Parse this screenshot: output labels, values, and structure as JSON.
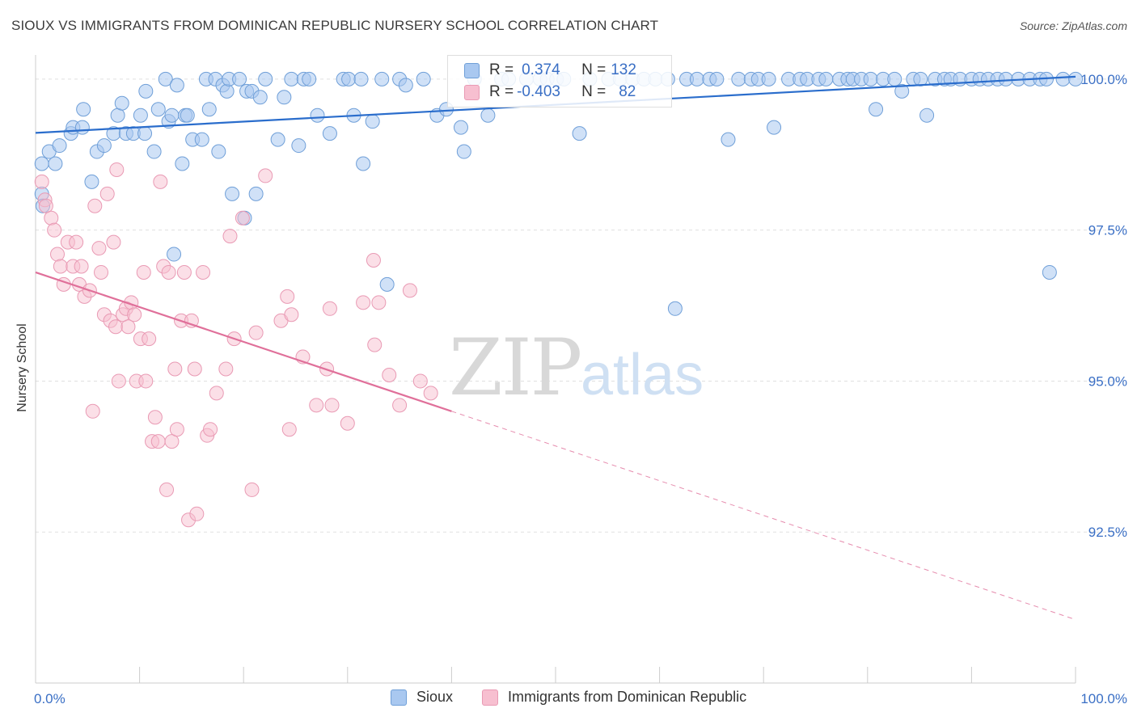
{
  "title": "SIOUX VS IMMIGRANTS FROM DOMINICAN REPUBLIC NURSERY SCHOOL CORRELATION CHART",
  "source": "Source: ZipAtlas.com",
  "watermark": {
    "zip": "ZIP",
    "atlas": "atlas"
  },
  "colors": {
    "blue_fill": "#a9c8f0",
    "blue_stroke": "#6f9fd8",
    "blue_line": "#2a6dcc",
    "pink_fill": "#f7bfd0",
    "pink_stroke": "#e99ab4",
    "pink_line": "#e0709a",
    "tick_label": "#3a6fc5",
    "grid": "#e0e0e0"
  },
  "legend": {
    "rows": [
      {
        "r_label": "R = ",
        "r_value": "0.374",
        "n_label": "N = ",
        "n_value": "132"
      },
      {
        "r_label": "R = ",
        "r_value": "-0.403",
        "n_label": "N = ",
        "n_value": "82"
      }
    ]
  },
  "chart_data": {
    "type": "scatter",
    "title": "SIOUX VS IMMIGRANTS FROM DOMINICAN REPUBLIC NURSERY SCHOOL CORRELATION CHART",
    "xlabel": "",
    "ylabel": "Nursery School",
    "xlim": [
      0,
      100
    ],
    "ylim": [
      90.0,
      100.4
    ],
    "x_tick_labels": [
      "0.0%",
      "100.0%"
    ],
    "y_ticks": [
      100.0,
      97.5,
      95.0,
      92.5
    ],
    "y_tick_labels": [
      "100.0%",
      "97.5%",
      "95.0%",
      "92.5%"
    ],
    "grid": true,
    "legend_position": "top-center",
    "series": [
      {
        "name": "Sioux",
        "color": "#a9c8f0",
        "trend": {
          "x0": 0,
          "y0": 99.11,
          "x1": 100,
          "y1": 100.04
        },
        "points": [
          [
            0.6,
            98.1
          ],
          [
            0.7,
            97.9
          ],
          [
            0.6,
            98.6
          ],
          [
            1.3,
            98.8
          ],
          [
            1.9,
            98.6
          ],
          [
            2.3,
            98.9
          ],
          [
            3.4,
            99.1
          ],
          [
            3.6,
            99.2
          ],
          [
            4.5,
            99.2
          ],
          [
            4.6,
            99.5
          ],
          [
            5.4,
            98.3
          ],
          [
            5.9,
            98.8
          ],
          [
            6.6,
            98.9
          ],
          [
            7.5,
            99.1
          ],
          [
            7.9,
            99.4
          ],
          [
            8.3,
            99.6
          ],
          [
            8.7,
            99.1
          ],
          [
            9.4,
            99.1
          ],
          [
            10.1,
            99.4
          ],
          [
            10.5,
            99.1
          ],
          [
            10.6,
            99.8
          ],
          [
            11.4,
            98.8
          ],
          [
            11.8,
            99.5
          ],
          [
            12.5,
            100.0
          ],
          [
            12.8,
            99.3
          ],
          [
            13.1,
            99.4
          ],
          [
            13.3,
            97.1
          ],
          [
            13.6,
            99.9
          ],
          [
            14.1,
            98.6
          ],
          [
            14.4,
            99.4
          ],
          [
            14.6,
            99.4
          ],
          [
            15.1,
            99.0
          ],
          [
            16.0,
            99.0
          ],
          [
            16.4,
            100.0
          ],
          [
            16.7,
            99.5
          ],
          [
            17.3,
            100.0
          ],
          [
            17.6,
            98.8
          ],
          [
            18.0,
            99.9
          ],
          [
            18.4,
            99.8
          ],
          [
            18.6,
            100.0
          ],
          [
            18.9,
            98.1
          ],
          [
            19.6,
            100.0
          ],
          [
            20.1,
            97.7
          ],
          [
            20.3,
            99.8
          ],
          [
            20.8,
            99.8
          ],
          [
            21.2,
            98.1
          ],
          [
            21.6,
            99.7
          ],
          [
            22.1,
            100.0
          ],
          [
            23.3,
            99.0
          ],
          [
            23.9,
            99.7
          ],
          [
            24.6,
            100.0
          ],
          [
            25.3,
            98.9
          ],
          [
            25.8,
            100.0
          ],
          [
            26.3,
            100.0
          ],
          [
            27.1,
            99.4
          ],
          [
            28.3,
            99.1
          ],
          [
            29.6,
            100.0
          ],
          [
            30.1,
            100.0
          ],
          [
            30.6,
            99.4
          ],
          [
            31.3,
            100.0
          ],
          [
            31.5,
            98.6
          ],
          [
            32.4,
            99.3
          ],
          [
            33.3,
            100.0
          ],
          [
            33.8,
            96.6
          ],
          [
            35.0,
            100.0
          ],
          [
            35.6,
            99.9
          ],
          [
            37.3,
            100.0
          ],
          [
            38.6,
            99.4
          ],
          [
            39.5,
            99.5
          ],
          [
            40.9,
            99.2
          ],
          [
            41.2,
            98.8
          ],
          [
            42.2,
            100.0
          ],
          [
            43.5,
            99.4
          ],
          [
            44.8,
            100.0
          ],
          [
            45.5,
            100.0
          ],
          [
            47.2,
            100.0
          ],
          [
            48.5,
            100.0
          ],
          [
            49.2,
            100.0
          ],
          [
            50.1,
            100.0
          ],
          [
            50.8,
            100.0
          ],
          [
            52.3,
            99.1
          ],
          [
            53.3,
            100.0
          ],
          [
            55.1,
            100.0
          ],
          [
            56.2,
            100.0
          ],
          [
            57.4,
            100.0
          ],
          [
            58.5,
            100.0
          ],
          [
            59.6,
            100.0
          ],
          [
            60.8,
            100.0
          ],
          [
            61.5,
            96.2
          ],
          [
            62.6,
            100.0
          ],
          [
            63.6,
            100.0
          ],
          [
            64.8,
            100.0
          ],
          [
            65.5,
            100.0
          ],
          [
            66.6,
            99.0
          ],
          [
            67.6,
            100.0
          ],
          [
            68.8,
            100.0
          ],
          [
            69.5,
            100.0
          ],
          [
            70.5,
            100.0
          ],
          [
            71.0,
            99.2
          ],
          [
            72.4,
            100.0
          ],
          [
            73.5,
            100.0
          ],
          [
            74.2,
            100.0
          ],
          [
            75.3,
            100.0
          ],
          [
            76.0,
            100.0
          ],
          [
            77.3,
            100.0
          ],
          [
            78.1,
            100.0
          ],
          [
            78.6,
            100.0
          ],
          [
            79.4,
            100.0
          ],
          [
            80.3,
            100.0
          ],
          [
            80.8,
            99.5
          ],
          [
            81.5,
            100.0
          ],
          [
            82.6,
            100.0
          ],
          [
            83.3,
            99.8
          ],
          [
            84.4,
            100.0
          ],
          [
            85.1,
            100.0
          ],
          [
            85.7,
            99.4
          ],
          [
            86.5,
            100.0
          ],
          [
            87.4,
            100.0
          ],
          [
            88.0,
            100.0
          ],
          [
            88.9,
            100.0
          ],
          [
            90.0,
            100.0
          ],
          [
            90.8,
            100.0
          ],
          [
            91.6,
            100.0
          ],
          [
            92.5,
            100.0
          ],
          [
            93.3,
            100.0
          ],
          [
            94.5,
            100.0
          ],
          [
            95.6,
            100.0
          ],
          [
            96.6,
            100.0
          ],
          [
            97.2,
            100.0
          ],
          [
            97.5,
            96.8
          ],
          [
            98.8,
            100.0
          ],
          [
            100.0,
            100.0
          ]
        ]
      },
      {
        "name": "Immigrants from Dominican Republic",
        "color": "#f7bfd0",
        "trend": {
          "x0": 0,
          "y0": 96.8,
          "x1": 40,
          "y1": 94.5,
          "x2": 100,
          "y2": 91.05
        },
        "points": [
          [
            0.6,
            98.3
          ],
          [
            0.9,
            98.0
          ],
          [
            1.0,
            97.9
          ],
          [
            1.5,
            97.7
          ],
          [
            1.8,
            97.5
          ],
          [
            2.1,
            97.1
          ],
          [
            2.4,
            96.9
          ],
          [
            2.7,
            96.6
          ],
          [
            3.1,
            97.3
          ],
          [
            3.6,
            96.9
          ],
          [
            3.9,
            97.3
          ],
          [
            4.2,
            96.6
          ],
          [
            4.4,
            96.9
          ],
          [
            4.7,
            96.4
          ],
          [
            5.2,
            96.5
          ],
          [
            5.5,
            94.5
          ],
          [
            5.7,
            97.9
          ],
          [
            6.1,
            97.2
          ],
          [
            6.3,
            96.8
          ],
          [
            6.6,
            96.1
          ],
          [
            6.9,
            98.1
          ],
          [
            7.2,
            96.0
          ],
          [
            7.5,
            97.3
          ],
          [
            7.7,
            95.9
          ],
          [
            7.8,
            98.5
          ],
          [
            8.0,
            95.0
          ],
          [
            8.4,
            96.1
          ],
          [
            8.7,
            96.2
          ],
          [
            8.9,
            95.9
          ],
          [
            9.2,
            96.3
          ],
          [
            9.5,
            96.1
          ],
          [
            9.7,
            95.0
          ],
          [
            10.1,
            95.7
          ],
          [
            10.4,
            96.8
          ],
          [
            10.6,
            95.0
          ],
          [
            10.9,
            95.7
          ],
          [
            11.2,
            94.0
          ],
          [
            11.5,
            94.4
          ],
          [
            11.8,
            94.0
          ],
          [
            12.0,
            98.3
          ],
          [
            12.3,
            96.9
          ],
          [
            12.6,
            93.2
          ],
          [
            12.8,
            96.8
          ],
          [
            13.1,
            94.0
          ],
          [
            13.4,
            95.2
          ],
          [
            13.6,
            94.2
          ],
          [
            14.0,
            96.0
          ],
          [
            14.3,
            96.8
          ],
          [
            14.7,
            92.7
          ],
          [
            15.0,
            96.0
          ],
          [
            15.3,
            95.2
          ],
          [
            15.5,
            92.8
          ],
          [
            16.1,
            96.8
          ],
          [
            16.5,
            94.1
          ],
          [
            16.8,
            94.2
          ],
          [
            17.4,
            94.8
          ],
          [
            18.3,
            95.2
          ],
          [
            18.7,
            97.4
          ],
          [
            19.1,
            95.7
          ],
          [
            19.9,
            97.7
          ],
          [
            20.8,
            93.2
          ],
          [
            21.2,
            95.8
          ],
          [
            22.1,
            98.4
          ],
          [
            23.6,
            96.0
          ],
          [
            24.2,
            96.4
          ],
          [
            24.4,
            94.2
          ],
          [
            24.6,
            96.1
          ],
          [
            25.7,
            95.4
          ],
          [
            27.0,
            94.6
          ],
          [
            28.0,
            95.2
          ],
          [
            28.3,
            96.2
          ],
          [
            28.5,
            94.6
          ],
          [
            30.0,
            94.3
          ],
          [
            31.5,
            96.3
          ],
          [
            32.5,
            97.0
          ],
          [
            32.6,
            95.6
          ],
          [
            33.0,
            96.3
          ],
          [
            34.0,
            95.1
          ],
          [
            35.0,
            94.6
          ],
          [
            36.0,
            96.5
          ],
          [
            37.0,
            95.0
          ],
          [
            38.0,
            94.8
          ]
        ]
      }
    ]
  }
}
